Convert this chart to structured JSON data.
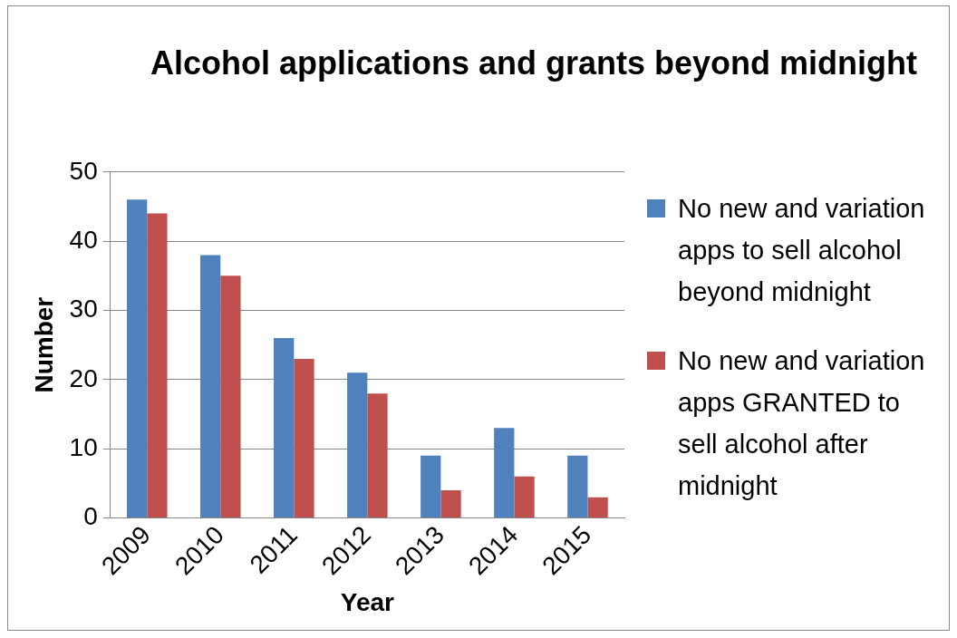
{
  "chart_data": {
    "type": "bar",
    "title": "Alcohol applications and grants beyond midnight",
    "xlabel": "Year",
    "ylabel": "Number",
    "categories": [
      "2009",
      "2010",
      "2011",
      "2012",
      "2013",
      "2014",
      "2015"
    ],
    "series": [
      {
        "name": "No new and variation  apps  to sell alcohol beyond midnight",
        "color": "#4f81bd",
        "values": [
          46,
          38,
          26,
          21,
          9,
          13,
          9
        ]
      },
      {
        "name": "No new and variation apps GRANTED to sell alcohol after midnight",
        "color": "#c0504d",
        "values": [
          44,
          35,
          23,
          18,
          4,
          6,
          3
        ]
      }
    ],
    "ylim": [
      0,
      50
    ],
    "yticks": [
      0,
      10,
      20,
      30,
      40,
      50
    ],
    "grid": "y",
    "legend": "right"
  }
}
